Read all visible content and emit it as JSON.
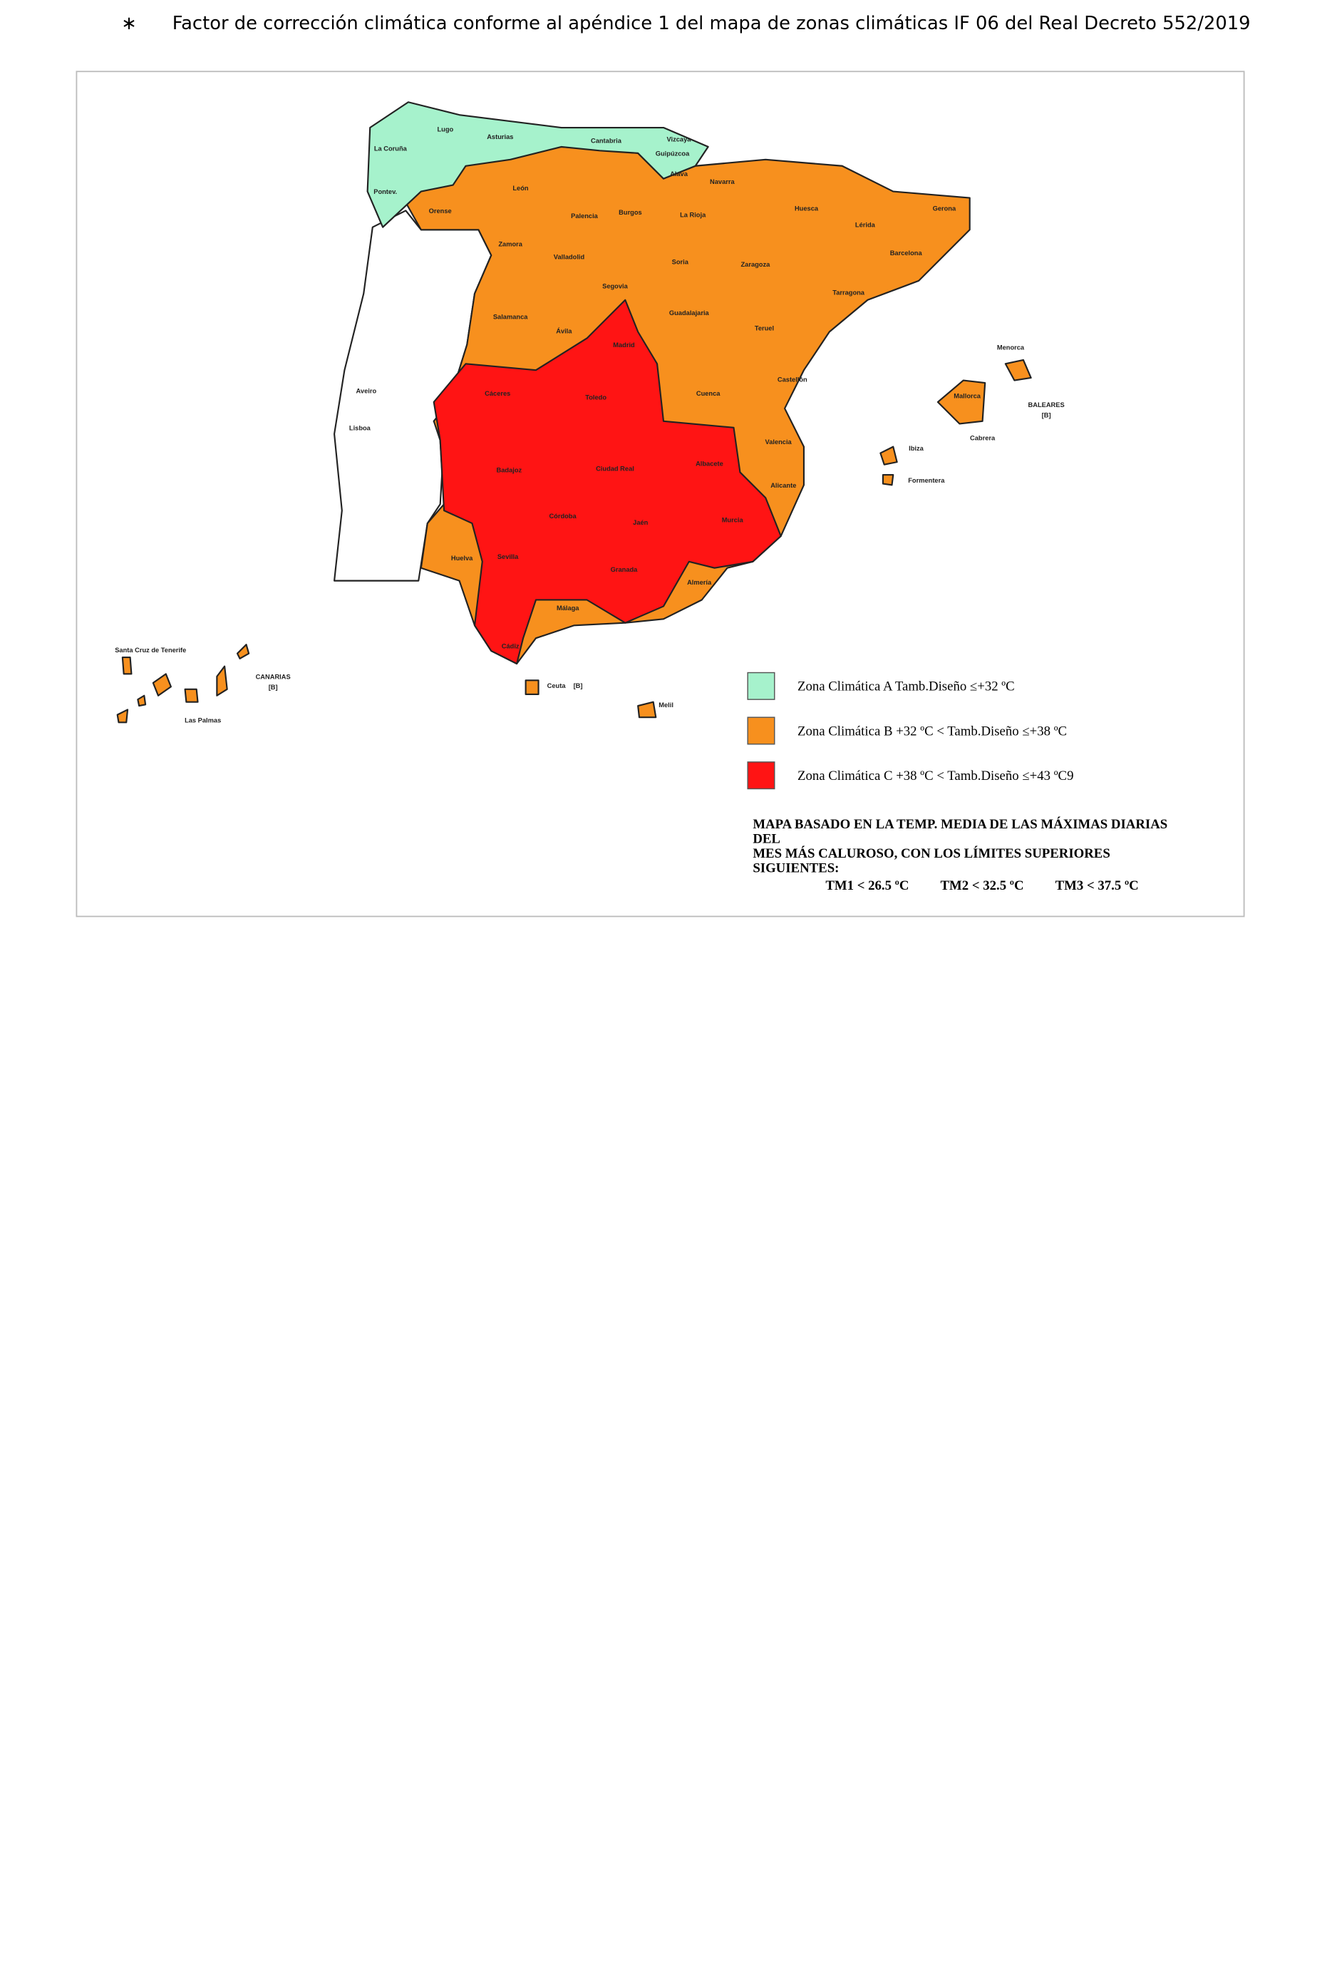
{
  "header": {
    "bullet": "∗",
    "text": "Factor de corrección climática conforme al apéndice 1 del mapa de zonas climáticas IF 06 del Real Decreto 552/2019"
  },
  "map": {
    "labels": [
      "Lugo",
      "La Coruña",
      "Pontev.",
      "Asturias",
      "Cantabria",
      "Vizcaya",
      "Guipúzcoa",
      "Alava",
      "Orense",
      "León",
      "Palencia",
      "Burgos",
      "La Rioja",
      "Navarra",
      "Huesca",
      "Gerona",
      "Lérida",
      "Barcelona",
      "Zamora",
      "Valladolid",
      "Soria",
      "Zaragoza",
      "Tarragona",
      "Segovia",
      "Guadalajaria",
      "Salamanca",
      "Ávila",
      "Madrid",
      "Teruel",
      "Castellón",
      "Cuenca",
      "Cáceres",
      "Toledo",
      "Valencia",
      "Badajoz",
      "Ciudad Real",
      "Albacete",
      "Alicante",
      "Córdoba",
      "Jaén",
      "Murcia",
      "Huelva",
      "Sevilla",
      "Granada",
      "Almería",
      "Málaga",
      "Cádiz",
      "Aveiro",
      "Lisboa",
      "Menorca",
      "Mallorca",
      "BALEARES",
      "[B]",
      "Cabrera",
      "Ibiza",
      "Formentera",
      "Santa Cruz de Tenerife",
      "CANARIAS",
      "[B]",
      "Las Palmas",
      "Ceuta",
      "[B]",
      "Melil"
    ],
    "legend": [
      {
        "label": "Zona Climática  A   Tamb.Diseño ≤+32 ºC",
        "color": "#a6f2cc"
      },
      {
        "label": "Zona Climática  B  +32 ºC < Tamb.Diseño  ≤+38 ºC",
        "color": "#f7901e"
      },
      {
        "label": "Zona Climática  C  +38 ºC < Tamb.Diseño  ≤+43 ºC9",
        "color": "#ff1414"
      }
    ],
    "note": [
      "MAPA BASADO EN LA TEMP. MEDIA DE LAS MÁXIMAS DIARIAS",
      "DEL",
      "MES MÁS CALUROSO, CON LOS LÍMITES SUPERIORES",
      "SIGUIENTES:"
    ],
    "limits": [
      "TM1 < 26.5 ºC",
      "TM2 < 32.5 ºC",
      "TM3 < 37.5 ºC"
    ]
  }
}
